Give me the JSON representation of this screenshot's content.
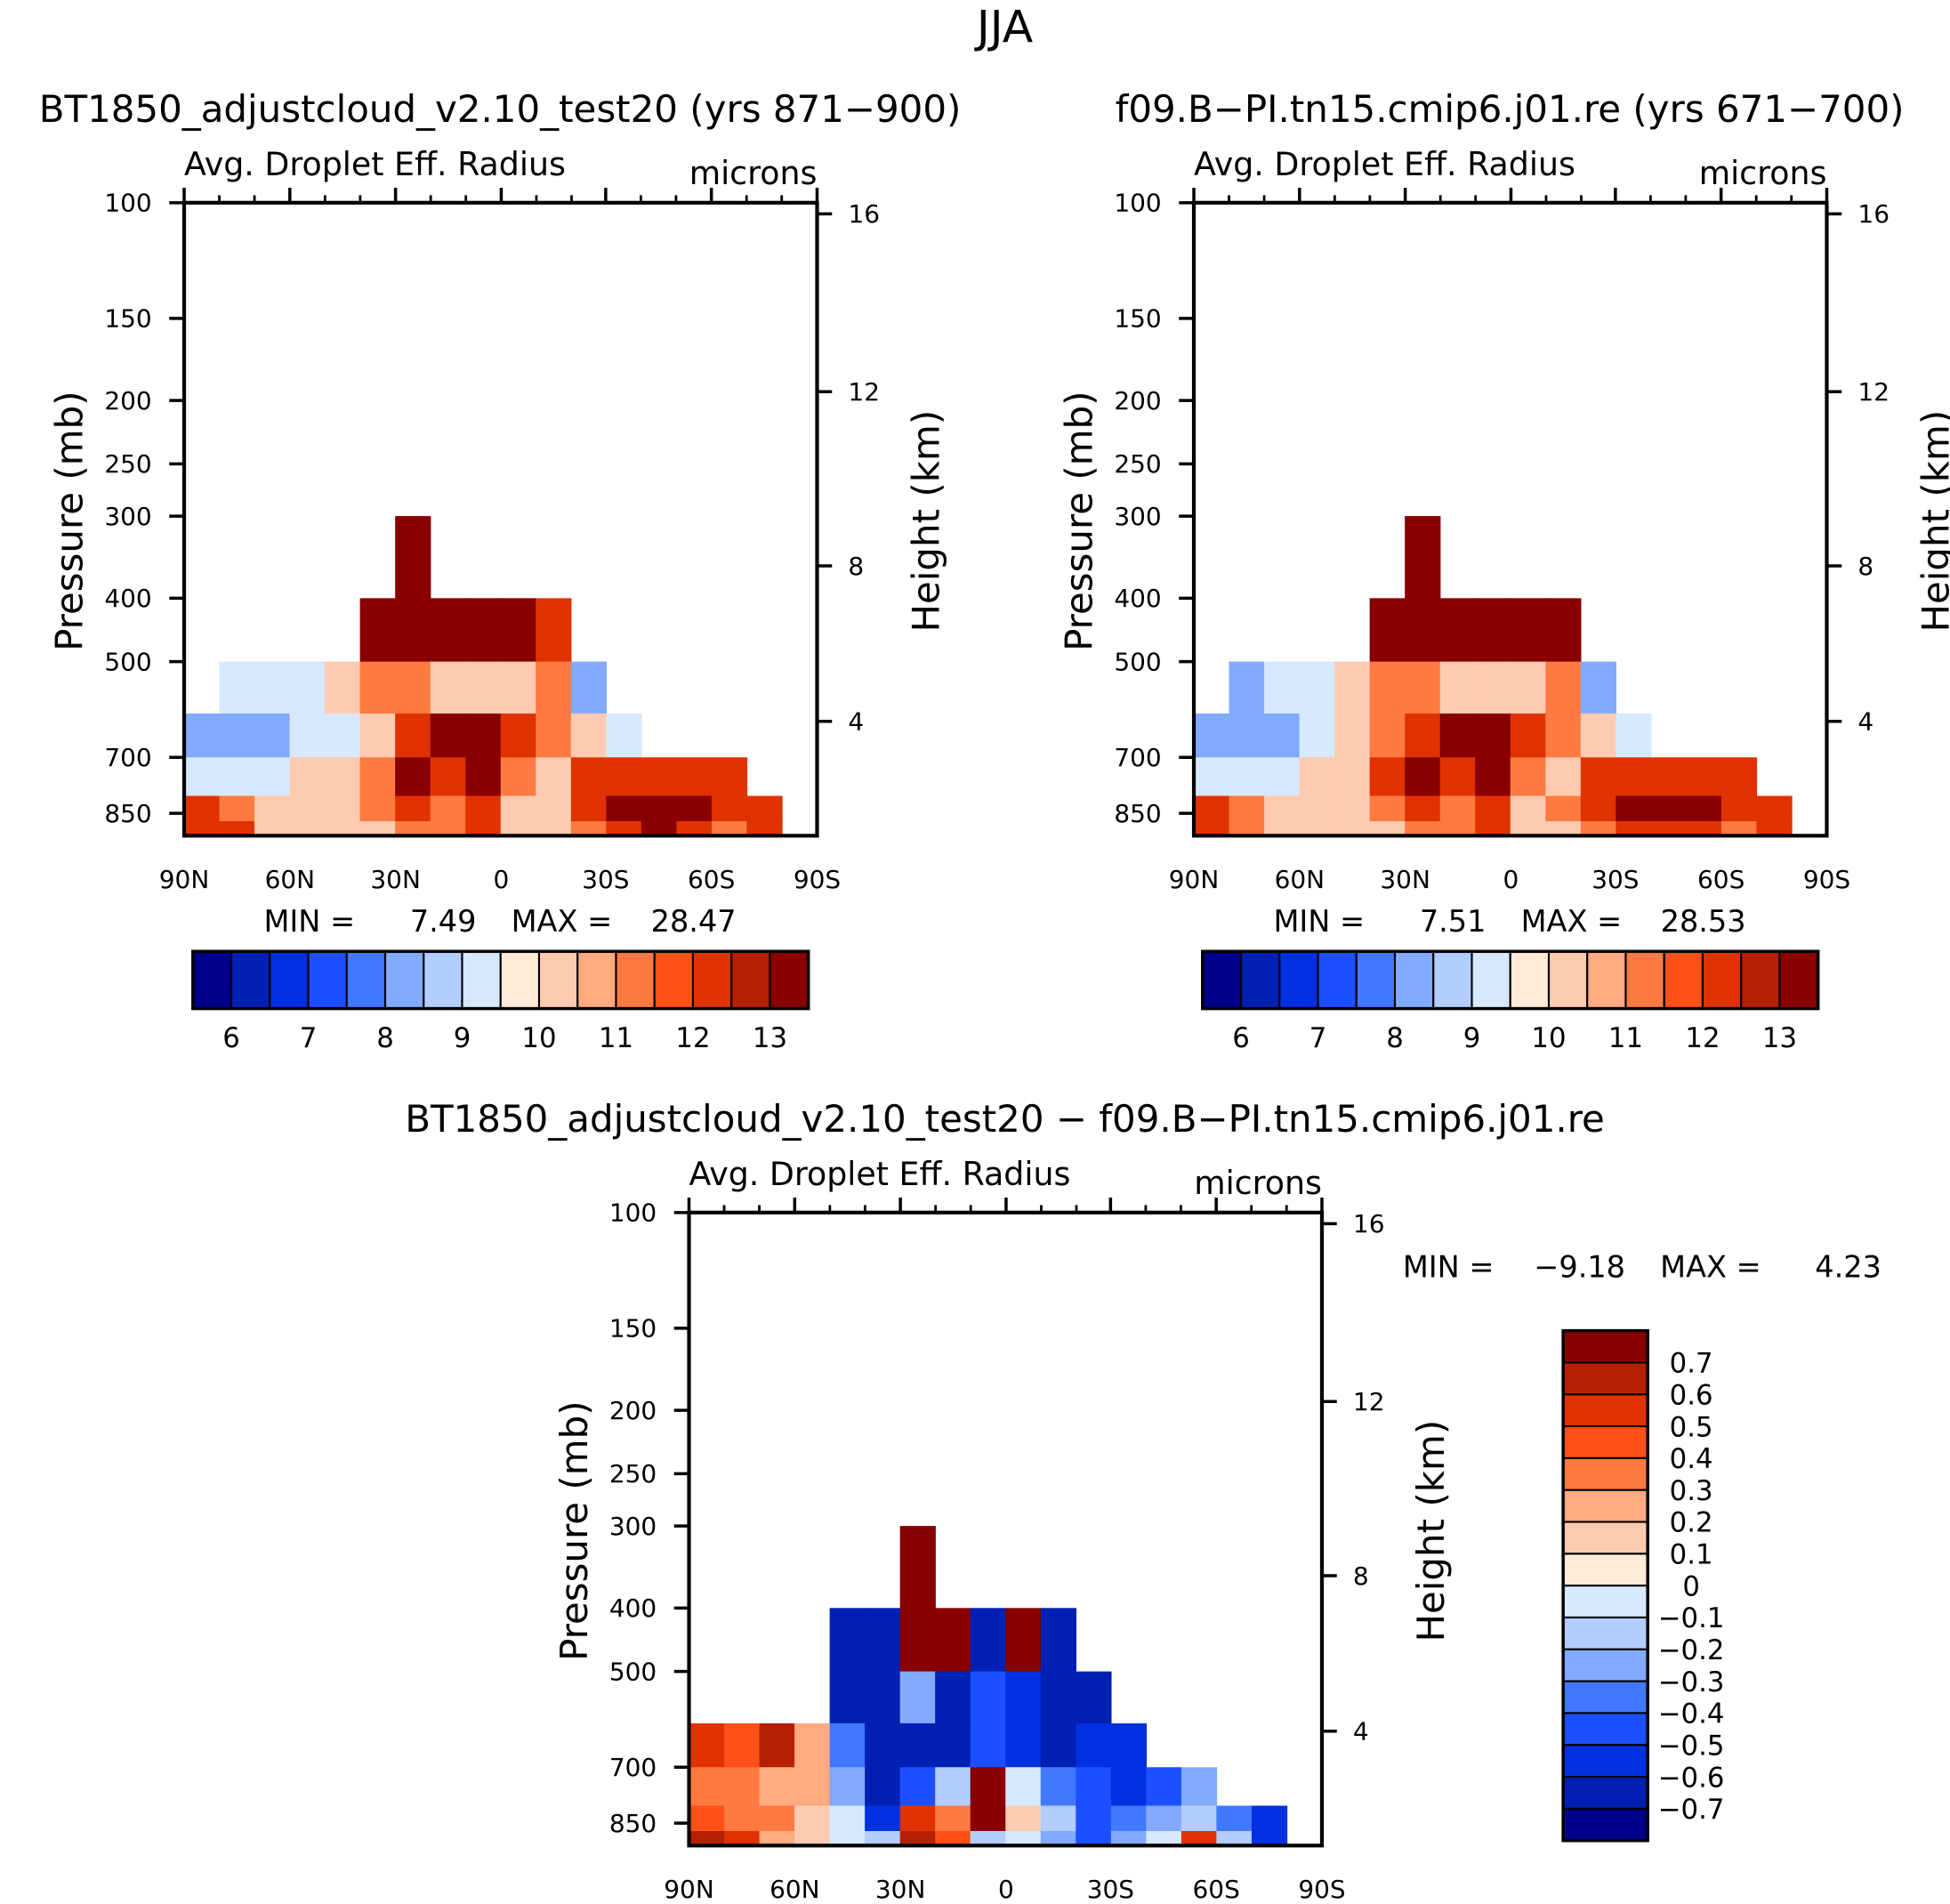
{
  "chart_data": {
    "type": "heatmap",
    "title": "JJA",
    "levels_abs": [
      6,
      6.5,
      7,
      7.5,
      8,
      8.5,
      9,
      9.5,
      10,
      10.5,
      11,
      11.5,
      12,
      12.5,
      13
    ],
    "levels_diff": [
      -0.7,
      -0.6,
      -0.5,
      -0.4,
      -0.3,
      -0.2,
      -0.1,
      0,
      0.1,
      0.2,
      0.3,
      0.4,
      0.5,
      0.6,
      0.7
    ],
    "colors": [
      "#00008b",
      "#0020b4",
      "#0030e0",
      "#1a50ff",
      "#4078ff",
      "#82aaff",
      "#b4cdff",
      "#d6e9ff",
      "#ffebd8",
      "#ffcbb0",
      "#ffaa80",
      "#ff7a40",
      "#ff5018",
      "#e03200",
      "#b52000",
      "#880000"
    ],
    "lat_centers": [
      85,
      75,
      65,
      55,
      45,
      35,
      25,
      15,
      5,
      -5,
      -15,
      -25,
      -35,
      -45,
      -55,
      -65,
      -75,
      -85
    ],
    "pressure_bands": [
      [
        300,
        400
      ],
      [
        400,
        500
      ],
      [
        500,
        600
      ],
      [
        600,
        700
      ],
      [
        700,
        800
      ],
      [
        800,
        900
      ],
      [
        900,
        1000
      ]
    ],
    "xticks": [
      "90N",
      "60N",
      "30N",
      "0",
      "30S",
      "60S",
      "90S"
    ],
    "yticks_left": [
      "100",
      "150",
      "200",
      "250",
      "300",
      "400",
      "500",
      "700",
      "850"
    ],
    "yticks_right": [
      "16",
      "12",
      "8",
      "4"
    ],
    "ylabel_left": "Pressure (mb)",
    "ylabel_right": "Height (km)",
    "panels": [
      {
        "title": "BT1850_adjustcloud_v2.10_test20 (yrs 871−900)",
        "subtitle": "Avg. Droplet Eff. Radius",
        "units": "microns",
        "min_label": "MIN =",
        "min": "7.49",
        "max_label": "MAX =",
        "max": "28.47",
        "colorbar_labels": [
          "6",
          "7",
          "8",
          "9",
          "10",
          "11",
          "12",
          "13"
        ],
        "values": [
          [
            null,
            null,
            null,
            null,
            null,
            null,
            13,
            null,
            null,
            null,
            null,
            null,
            null,
            null,
            null,
            null,
            null,
            null
          ],
          [
            null,
            null,
            null,
            null,
            null,
            13,
            13,
            13,
            13,
            13,
            12,
            null,
            null,
            null,
            null,
            null,
            null,
            null
          ],
          [
            null,
            9,
            9,
            9,
            10,
            11,
            11,
            10,
            10,
            10,
            11,
            8,
            null,
            null,
            null,
            null,
            null,
            null
          ],
          [
            8,
            8,
            8,
            9,
            9,
            10,
            12,
            13,
            13,
            12,
            11,
            10,
            9,
            null,
            null,
            null,
            null,
            null
          ],
          [
            9,
            9,
            9,
            10,
            10,
            11,
            13,
            12,
            13,
            11,
            10,
            12,
            12,
            12,
            12,
            12,
            null,
            null
          ],
          [
            12,
            11,
            10,
            10,
            10,
            11,
            12,
            11,
            12,
            10,
            10,
            12,
            13,
            13,
            13,
            12,
            12,
            null
          ],
          [
            12,
            12,
            10,
            10,
            10,
            10,
            11,
            11,
            12,
            10,
            10,
            11,
            12,
            13,
            12,
            11,
            12,
            null
          ]
        ]
      },
      {
        "title": "f09.B−PI.tn15.cmip6.j01.re (yrs 671−700)",
        "subtitle": "Avg. Droplet Eff. Radius",
        "units": "microns",
        "min_label": "MIN =",
        "min": "7.51",
        "max_label": "MAX =",
        "max": "28.53",
        "colorbar_labels": [
          "6",
          "7",
          "8",
          "9",
          "10",
          "11",
          "12",
          "13"
        ],
        "values": [
          [
            null,
            null,
            null,
            null,
            null,
            null,
            13,
            null,
            null,
            null,
            null,
            null,
            null,
            null,
            null,
            null,
            null,
            null
          ],
          [
            null,
            null,
            null,
            null,
            null,
            13,
            13,
            13,
            13,
            13,
            13,
            null,
            null,
            null,
            null,
            null,
            null,
            null
          ],
          [
            null,
            8,
            9,
            9,
            10,
            11,
            11,
            10,
            10,
            10,
            11,
            8,
            null,
            null,
            null,
            null,
            null,
            null
          ],
          [
            8,
            8,
            8,
            9,
            10,
            11,
            12,
            13,
            13,
            12,
            11,
            10,
            9,
            null,
            null,
            null,
            null,
            null
          ],
          [
            9,
            9,
            9,
            10,
            10,
            12,
            13,
            12,
            13,
            11,
            10,
            12,
            12,
            12,
            12,
            12,
            null,
            null
          ],
          [
            12,
            11,
            10,
            10,
            10,
            11,
            12,
            11,
            12,
            10,
            11,
            12,
            13,
            13,
            13,
            12,
            12,
            null
          ],
          [
            12,
            11,
            10,
            10,
            10,
            10,
            11,
            11,
            12,
            10,
            10,
            11,
            12,
            12,
            12,
            11,
            12,
            null
          ]
        ]
      },
      {
        "title": "BT1850_adjustcloud_v2.10_test20 − f09.B−PI.tn15.cmip6.j01.re",
        "subtitle": "Avg. Droplet Eff. Radius",
        "units": "microns",
        "min_label": "MIN =",
        "min": "−9.18",
        "max_label": "MAX =",
        "max": "4.23",
        "colorbar_labels": [
          "0.7",
          "0.6",
          "0.5",
          "0.4",
          "0.3",
          "0.2",
          "0.1",
          "0",
          "−0.1",
          "−0.2",
          "−0.3",
          "−0.4",
          "−0.5",
          "−0.6",
          "−0.7"
        ],
        "values": [
          [
            null,
            null,
            null,
            null,
            null,
            null,
            0.7,
            null,
            null,
            null,
            null,
            null,
            null,
            null,
            null,
            null,
            null,
            null
          ],
          [
            null,
            null,
            null,
            null,
            -0.7,
            -0.7,
            0.7,
            0.7,
            -0.7,
            0.7,
            -0.7,
            null,
            null,
            null,
            null,
            null,
            null,
            null
          ],
          [
            null,
            null,
            null,
            null,
            -0.7,
            -0.7,
            -0.3,
            -0.7,
            -0.5,
            -0.6,
            -0.7,
            -0.7,
            null,
            null,
            null,
            null,
            null,
            null
          ],
          [
            0.5,
            0.4,
            0.6,
            0.2,
            -0.4,
            -0.7,
            -0.7,
            -0.7,
            -0.5,
            -0.6,
            -0.7,
            -0.6,
            -0.6,
            null,
            null,
            null,
            null,
            null
          ],
          [
            0.3,
            0.3,
            0.2,
            0.2,
            -0.3,
            -0.7,
            -0.5,
            -0.2,
            0.7,
            -0.1,
            -0.4,
            -0.5,
            -0.6,
            -0.5,
            -0.3,
            null,
            null,
            null
          ],
          [
            0.4,
            0.3,
            0.3,
            0.1,
            -0.1,
            -0.6,
            0.5,
            0.3,
            0.7,
            0.1,
            -0.2,
            -0.5,
            -0.4,
            -0.3,
            -0.2,
            -0.4,
            -0.6,
            null
          ],
          [
            0.6,
            0.5,
            0.2,
            0.1,
            -0.1,
            -0.2,
            0.6,
            0.4,
            -0.2,
            -0.1,
            -0.3,
            -0.5,
            -0.3,
            -0.1,
            0.5,
            -0.2,
            -0.6,
            null
          ]
        ]
      }
    ]
  }
}
